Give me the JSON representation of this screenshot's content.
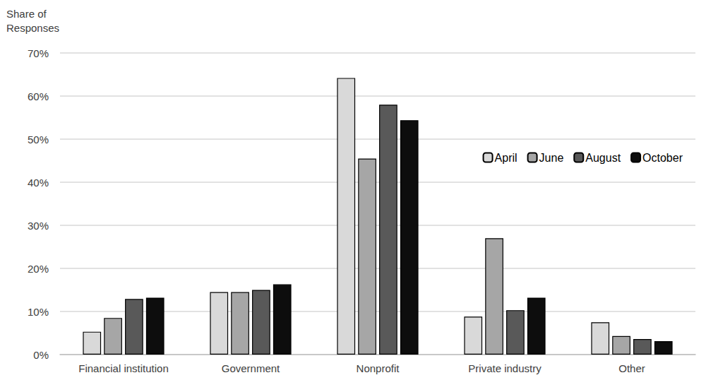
{
  "chart_data": {
    "type": "bar",
    "y_label": "Share of Responses",
    "categories": [
      "Financial institution",
      "Government",
      "Nonprofit",
      "Private industry",
      "Other"
    ],
    "series": [
      {
        "name": "April",
        "color": "#d9d9d9",
        "values": [
          5.3,
          14.5,
          64.2,
          8.8,
          7.5
        ]
      },
      {
        "name": "June",
        "color": "#a6a6a6",
        "values": [
          8.5,
          14.5,
          45.5,
          27.0,
          4.3
        ]
      },
      {
        "name": "August",
        "color": "#595959",
        "values": [
          12.9,
          15.0,
          58.0,
          10.3,
          3.6
        ]
      },
      {
        "name": "October",
        "color": "#0d0d0d",
        "values": [
          13.2,
          16.3,
          54.4,
          13.2,
          3.1
        ]
      }
    ],
    "ylim": [
      0,
      70
    ],
    "yticks": [
      {
        "value": 0,
        "label": "0%"
      },
      {
        "value": 10,
        "label": "10%"
      },
      {
        "value": 20,
        "label": "20%"
      },
      {
        "value": 30,
        "label": "30%"
      },
      {
        "value": 40,
        "label": "40%"
      },
      {
        "value": 50,
        "label": "50%"
      },
      {
        "value": 60,
        "label": "60%"
      },
      {
        "value": 70,
        "label": "70%"
      }
    ],
    "grid": true,
    "legend": "right"
  }
}
